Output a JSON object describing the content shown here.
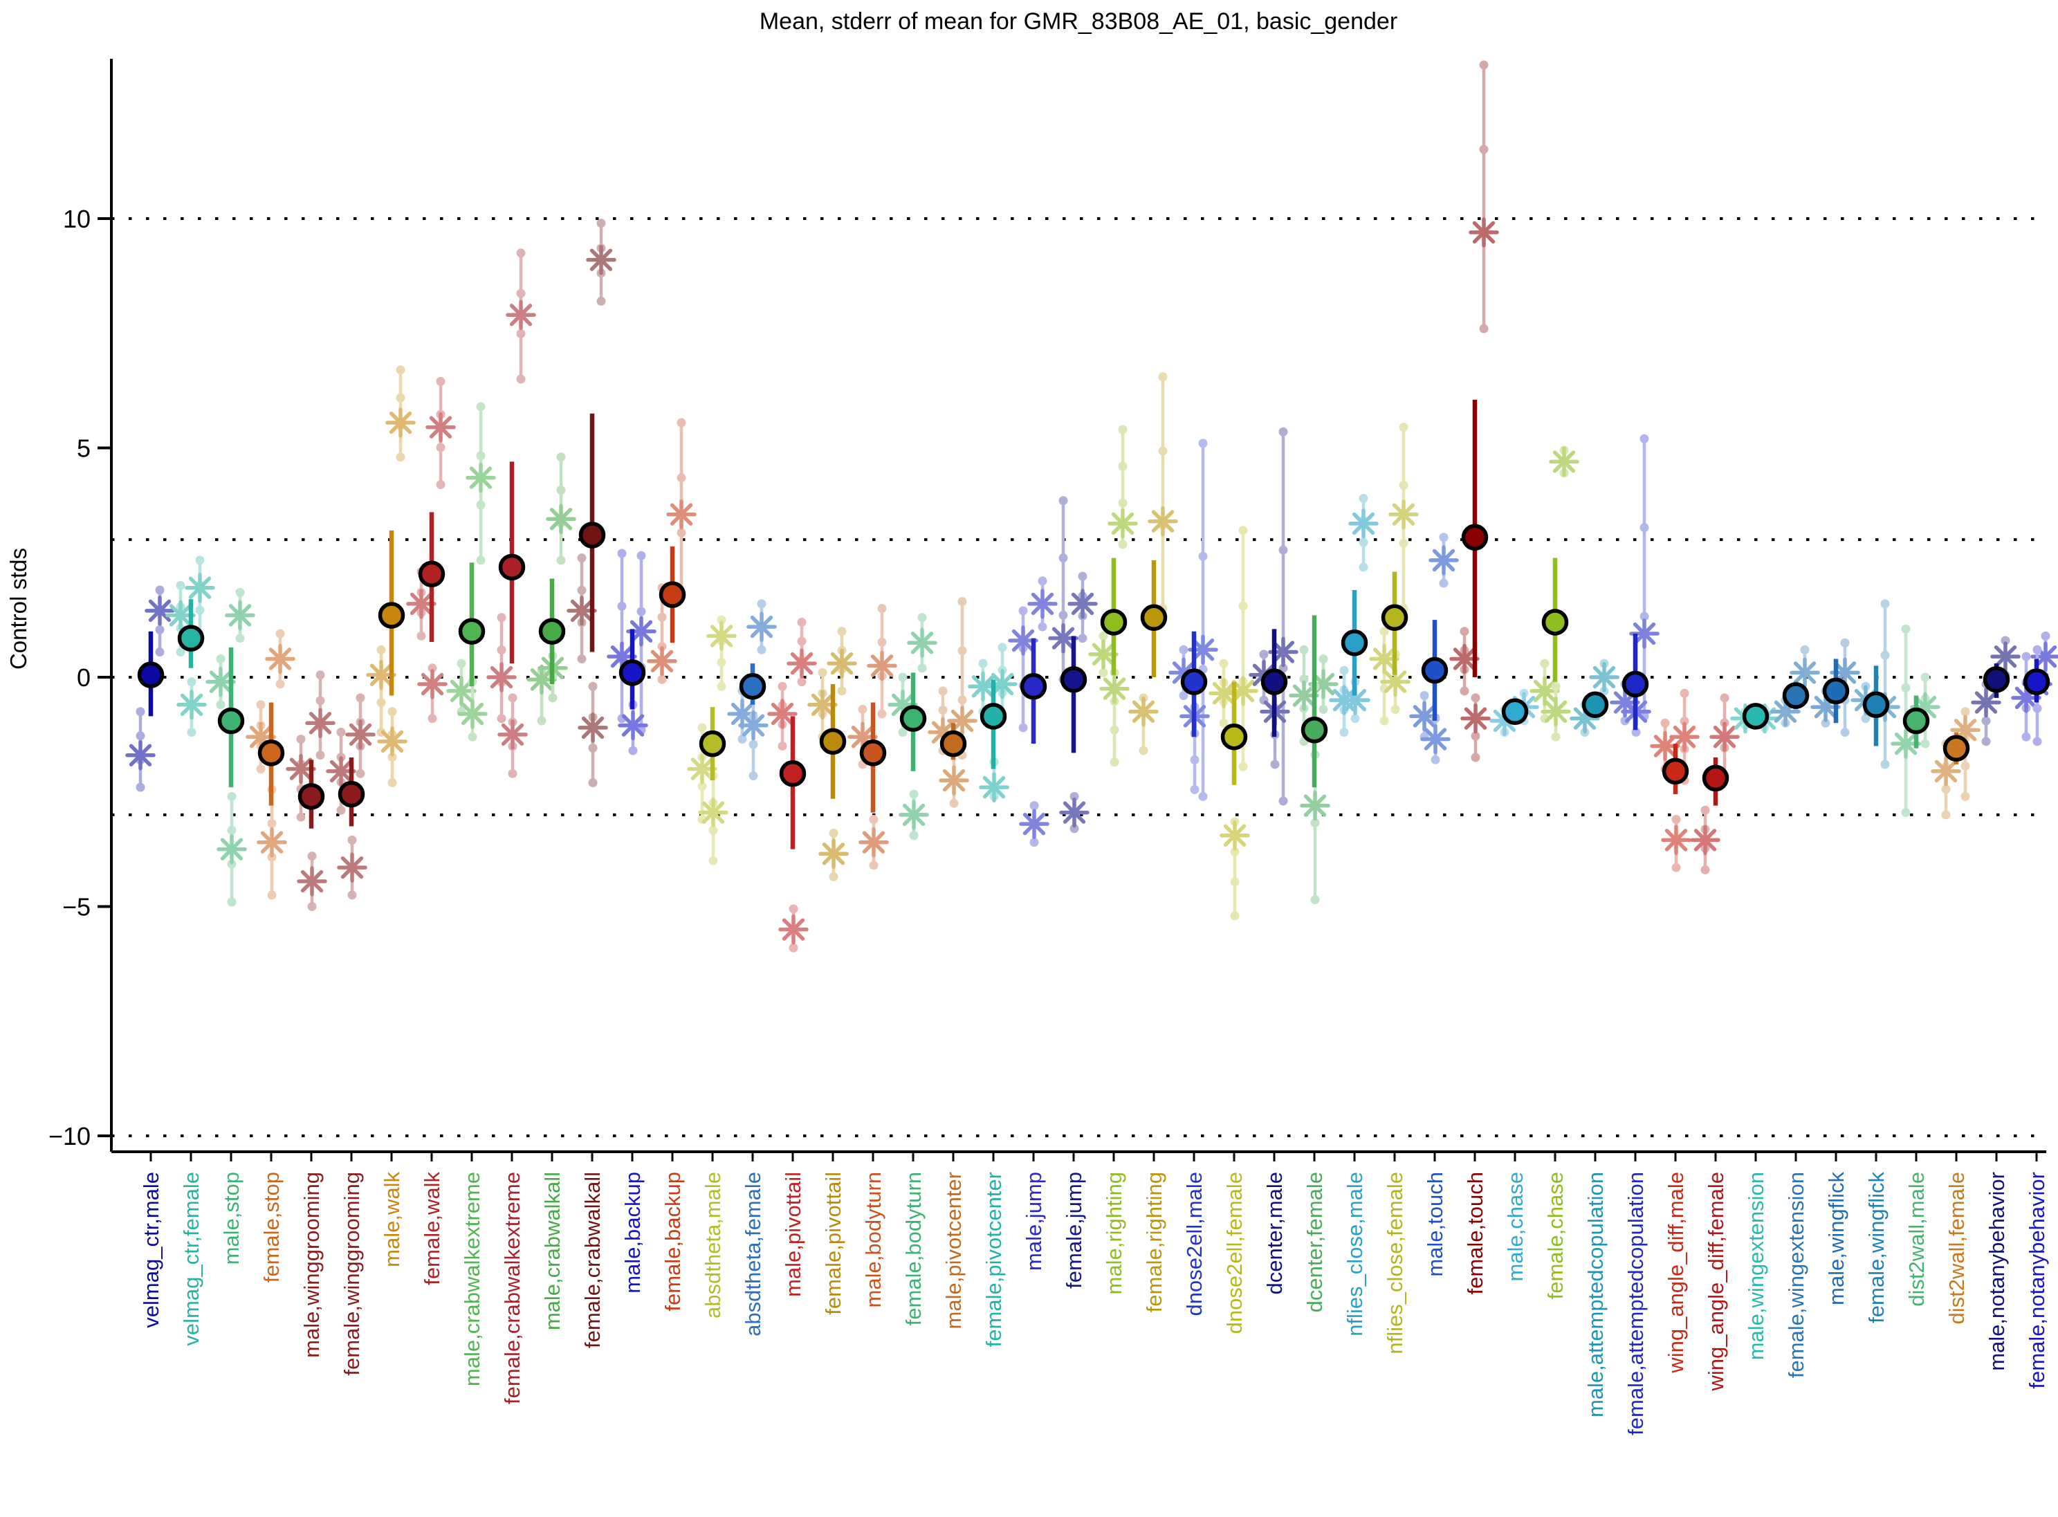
{
  "chart_data": {
    "type": "scatter",
    "title": "Mean, stderr of mean for GMR_83B08_AE_01, basic_gender",
    "ylabel": "Control stds",
    "ylim": [
      -10.35,
      13.5
    ],
    "grid": "dotted-horizontal",
    "gridlines": [
      10,
      3,
      0,
      -3,
      -10
    ],
    "yticks": [
      {
        "v": 10,
        "label": "10"
      },
      {
        "v": 5,
        "label": "5"
      },
      {
        "v": 0,
        "label": "0"
      },
      {
        "v": -5,
        "label": "−5"
      },
      {
        "v": -10,
        "label": "−10"
      }
    ],
    "marker_note": "filled circle = mean with stderr bar; light bars/dots and asterisks = control distributions",
    "series": [
      {
        "label": "velmag_ctr,male",
        "color": "#0a0aa0",
        "mean": 0.05,
        "lo": -0.85,
        "hi": 1.0,
        "ctrl": [
          [
            1.45,
            0.55,
            1.9
          ],
          [
            -1.7,
            -2.4,
            -0.75
          ]
        ]
      },
      {
        "label": "velmag_ctr,female",
        "color": "#26b3a4",
        "mean": 0.85,
        "lo": 0.2,
        "hi": 1.7,
        "ctrl": [
          [
            1.95,
            0.85,
            2.55
          ],
          [
            1.35,
            0.55,
            2.0
          ],
          [
            -0.6,
            -1.2,
            -0.1
          ]
        ]
      },
      {
        "label": "male,stop",
        "color": "#3cb371",
        "mean": -0.95,
        "lo": -2.4,
        "hi": 0.65,
        "ctrl": [
          [
            1.35,
            0.85,
            1.85
          ],
          [
            -0.1,
            -0.6,
            0.4
          ],
          [
            -3.75,
            -4.9,
            -2.6
          ]
        ]
      },
      {
        "label": "female,stop",
        "color": "#cd661d",
        "mean": -1.65,
        "lo": -2.8,
        "hi": -0.55,
        "ctrl": [
          [
            0.4,
            -0.15,
            0.95
          ],
          [
            -1.3,
            -2.0,
            -0.6
          ],
          [
            -3.6,
            -4.75,
            -2.45
          ]
        ]
      },
      {
        "label": "male,winggrooming",
        "color": "#8b1a1a",
        "mean": -2.6,
        "lo": -3.3,
        "hi": -1.8,
        "ctrl": [
          [
            -1.0,
            -1.7,
            0.05
          ],
          [
            -2.0,
            -3.05,
            -1.35
          ],
          [
            -4.45,
            -5.0,
            -3.9
          ]
        ]
      },
      {
        "label": "female,winggrooming",
        "color": "#8b1a1a",
        "mean": -2.55,
        "lo": -3.25,
        "hi": -1.75,
        "ctrl": [
          [
            -1.25,
            -2.1,
            -0.45
          ],
          [
            -2.05,
            -2.9,
            -1.2
          ],
          [
            -4.15,
            -4.75,
            -3.55
          ]
        ]
      },
      {
        "label": "male,walk",
        "color": "#c8860b",
        "mean": 1.35,
        "lo": -0.4,
        "hi": 3.2,
        "ctrl": [
          [
            5.55,
            4.8,
            6.7
          ],
          [
            0.05,
            -1.2,
            0.6
          ],
          [
            -1.4,
            -2.3,
            -0.75
          ]
        ]
      },
      {
        "label": "female,walk",
        "color": "#b22222",
        "mean": 2.25,
        "lo": 0.77,
        "hi": 3.6,
        "ctrl": [
          [
            5.45,
            4.2,
            6.45
          ],
          [
            1.6,
            0.9,
            2.3
          ],
          [
            -0.15,
            -0.9,
            0.2
          ]
        ]
      },
      {
        "label": "male,crabwalkextreme",
        "color": "#50b450",
        "mean": 1.0,
        "lo": -0.2,
        "hi": 2.5,
        "ctrl": [
          [
            4.35,
            2.55,
            5.9
          ],
          [
            -0.3,
            -0.75,
            0.3
          ],
          [
            -0.8,
            -1.3,
            -0.1
          ]
        ]
      },
      {
        "label": "female,crabwalkextreme",
        "color": "#aa2028",
        "mean": 2.4,
        "lo": 0.3,
        "hi": 4.7,
        "ctrl": [
          [
            7.9,
            6.5,
            9.25
          ],
          [
            0.0,
            -0.9,
            1.3
          ],
          [
            -1.25,
            -2.1,
            -0.45
          ]
        ]
      },
      {
        "label": "male,crabwalkall",
        "color": "#46ab46",
        "mean": 1.0,
        "lo": -0.15,
        "hi": 2.15,
        "ctrl": [
          [
            3.45,
            2.55,
            4.8
          ],
          [
            -0.05,
            -0.95,
            0.15
          ],
          [
            0.2,
            -0.45,
            0.9
          ]
        ]
      },
      {
        "label": "female,crabwalkall",
        "color": "#701414",
        "mean": 3.1,
        "lo": 0.55,
        "hi": 5.75,
        "ctrl": [
          [
            9.1,
            8.2,
            9.9
          ],
          [
            1.45,
            0.4,
            2.6
          ],
          [
            -1.1,
            -2.3,
            -0.2
          ]
        ]
      },
      {
        "label": "male,backup",
        "color": "#1414c8",
        "mean": 0.1,
        "lo": -0.7,
        "hi": 1.05,
        "ctrl": [
          [
            1.0,
            -1.15,
            2.65
          ],
          [
            0.45,
            -0.9,
            2.7
          ],
          [
            -1.05,
            -1.6,
            -0.6
          ]
        ]
      },
      {
        "label": "female,backup",
        "color": "#c83c14",
        "mean": 1.8,
        "lo": 0.75,
        "hi": 2.85,
        "ctrl": [
          [
            3.55,
            1.8,
            5.55
          ],
          [
            0.35,
            -0.05,
            1.95
          ]
        ]
      },
      {
        "label": "absdtheta,male",
        "color": "#b4bd28",
        "mean": -1.45,
        "lo": -2.25,
        "hi": -0.65,
        "ctrl": [
          [
            0.9,
            -0.2,
            1.25
          ],
          [
            -2.0,
            -3.1,
            -1.1
          ],
          [
            -2.95,
            -4.0,
            -2.15
          ]
        ]
      },
      {
        "label": "absdtheta,female",
        "color": "#2b6fc2",
        "mean": -0.2,
        "lo": -0.6,
        "hi": 0.3,
        "ctrl": [
          [
            1.1,
            0.6,
            1.6
          ],
          [
            -0.8,
            -1.35,
            -0.3
          ],
          [
            -1.05,
            -2.15,
            -0.25
          ]
        ]
      },
      {
        "label": "male,pivottail",
        "color": "#c22121",
        "mean": -2.1,
        "lo": -3.75,
        "hi": -0.85,
        "ctrl": [
          [
            0.3,
            -0.1,
            1.2
          ],
          [
            -0.8,
            -1.5,
            -0.2
          ],
          [
            -5.5,
            -5.9,
            -5.05
          ]
        ]
      },
      {
        "label": "female,pivottail",
        "color": "#bb8a0b",
        "mean": -1.4,
        "lo": -2.65,
        "hi": -0.15,
        "ctrl": [
          [
            0.3,
            -0.3,
            1.0
          ],
          [
            -0.6,
            -1.3,
            0.1
          ],
          [
            -3.85,
            -4.35,
            -3.4
          ]
        ]
      },
      {
        "label": "male,bodyturn",
        "color": "#c8551f",
        "mean": -1.65,
        "lo": -2.95,
        "hi": -0.55,
        "ctrl": [
          [
            0.25,
            -0.8,
            1.5
          ],
          [
            -1.3,
            -1.9,
            -0.7
          ],
          [
            -3.6,
            -4.1,
            -3.1
          ]
        ]
      },
      {
        "label": "female,bodyturn",
        "color": "#3cb371",
        "mean": -0.9,
        "lo": -2.05,
        "hi": 0.1,
        "ctrl": [
          [
            0.75,
            0.2,
            1.3
          ],
          [
            -0.6,
            -1.2,
            0.0
          ],
          [
            -3.0,
            -3.45,
            -2.55
          ]
        ]
      },
      {
        "label": "male,pivotcenter",
        "color": "#c26a1d",
        "mean": -1.45,
        "lo": -1.8,
        "hi": -1.0,
        "ctrl": [
          [
            -0.95,
            -1.7,
            1.65
          ],
          [
            -1.2,
            -1.6,
            -0.3
          ],
          [
            -2.25,
            -2.75,
            -1.65
          ]
        ]
      },
      {
        "label": "female,pivotcenter",
        "color": "#20b2aa",
        "mean": -0.85,
        "lo": -2.0,
        "hi": -0.05,
        "ctrl": [
          [
            -0.15,
            -0.9,
            0.65
          ],
          [
            -0.2,
            -0.75,
            0.3
          ],
          [
            -2.4,
            -2.6,
            -1.85
          ]
        ]
      },
      {
        "label": "male,jump",
        "color": "#2828c8",
        "mean": -0.2,
        "lo": -1.45,
        "hi": 0.85,
        "ctrl": [
          [
            1.6,
            1.1,
            2.1
          ],
          [
            0.8,
            -1.1,
            1.45
          ],
          [
            -3.2,
            -3.6,
            -2.8
          ]
        ]
      },
      {
        "label": "female,jump",
        "color": "#14148c",
        "mean": -0.05,
        "lo": -1.65,
        "hi": 0.9,
        "ctrl": [
          [
            1.6,
            0.85,
            2.2
          ],
          [
            0.85,
            -0.05,
            3.85
          ],
          [
            -2.95,
            -3.3,
            -2.6
          ]
        ]
      },
      {
        "label": "male,righting",
        "color": "#8fbc1f",
        "mean": 1.2,
        "lo": 0.05,
        "hi": 2.6,
        "ctrl": [
          [
            3.35,
            2.9,
            5.4
          ],
          [
            0.5,
            0.1,
            0.9
          ],
          [
            -0.25,
            -1.85,
            0.1
          ]
        ]
      },
      {
        "label": "female,righting",
        "color": "#bb960b",
        "mean": 1.3,
        "lo": 0.0,
        "hi": 2.55,
        "ctrl": [
          [
            3.4,
            1.5,
            6.55
          ],
          [
            -0.75,
            -1.6,
            -0.45
          ]
        ]
      },
      {
        "label": "dnose2ell,male",
        "color": "#2233cc",
        "mean": -0.1,
        "lo": -1.3,
        "hi": 1.0,
        "ctrl": [
          [
            0.6,
            -2.6,
            5.1
          ],
          [
            0.1,
            -0.4,
            0.6
          ],
          [
            -0.85,
            -2.45,
            -0.65
          ]
        ]
      },
      {
        "label": "dnose2ell,female",
        "color": "#b8b818",
        "mean": -1.3,
        "lo": -2.35,
        "hi": -0.1,
        "ctrl": [
          [
            -0.3,
            -1.95,
            3.2
          ],
          [
            -0.35,
            -1.0,
            0.3
          ],
          [
            -3.45,
            -5.2,
            -3.15
          ]
        ]
      },
      {
        "label": "dcenter,male",
        "color": "#101080",
        "mean": -0.1,
        "lo": -1.3,
        "hi": 1.05,
        "ctrl": [
          [
            0.55,
            -2.7,
            5.35
          ],
          [
            0.05,
            -0.5,
            0.5
          ],
          [
            -0.75,
            -1.9,
            -0.1
          ]
        ]
      },
      {
        "label": "dcenter,female",
        "color": "#46ab5a",
        "mean": -1.15,
        "lo": -2.4,
        "hi": 1.35,
        "ctrl": [
          [
            -0.15,
            -0.7,
            0.4
          ],
          [
            -0.4,
            -1.4,
            0.6
          ],
          [
            -2.8,
            -4.85,
            -0.2
          ]
        ]
      },
      {
        "label": "nflies_close,male",
        "color": "#28a0c8",
        "mean": 0.75,
        "lo": -0.4,
        "hi": 1.9,
        "ctrl": [
          [
            3.35,
            2.4,
            3.9
          ],
          [
            -0.5,
            -1.2,
            0.15
          ],
          [
            -0.5,
            -0.9,
            -0.1
          ]
        ]
      },
      {
        "label": "nflies_close,female",
        "color": "#b4b41e",
        "mean": 1.3,
        "lo": 0.05,
        "hi": 2.3,
        "ctrl": [
          [
            3.55,
            1.5,
            5.45
          ],
          [
            0.4,
            -0.95,
            1.0
          ],
          [
            -0.1,
            -0.7,
            0.5
          ]
        ]
      },
      {
        "label": "male,touch",
        "color": "#1e50c8",
        "mean": 0.15,
        "lo": -0.95,
        "hi": 1.25,
        "ctrl": [
          [
            2.55,
            2.05,
            3.05
          ],
          [
            -0.85,
            -1.3,
            -0.4
          ],
          [
            -1.35,
            -1.8,
            -0.9
          ]
        ]
      },
      {
        "label": "female,touch",
        "color": "#8b0000",
        "mean": 3.05,
        "lo": 0.0,
        "hi": 6.05,
        "ctrl": [
          [
            9.7,
            7.6,
            13.35
          ],
          [
            0.4,
            -0.3,
            1.0
          ],
          [
            -0.9,
            -1.75,
            -0.45
          ]
        ]
      },
      {
        "label": "male,chase",
        "color": "#30a8d2",
        "mean": -0.75,
        "lo": -0.95,
        "hi": -0.55,
        "ctrl": [
          [
            -0.65,
            -0.95,
            -0.35
          ],
          [
            -0.95,
            -1.2,
            -0.7
          ]
        ]
      },
      {
        "label": "female,chase",
        "color": "#8fbc1f",
        "mean": 1.2,
        "lo": -0.1,
        "hi": 2.6,
        "ctrl": [
          [
            4.7,
            4.45,
            4.95
          ],
          [
            -0.3,
            -0.9,
            0.3
          ],
          [
            -0.75,
            -1.3,
            -0.2
          ]
        ]
      },
      {
        "label": "male,attemptedcopulation",
        "color": "#1a96b4",
        "mean": -0.6,
        "lo": -0.85,
        "hi": -0.35,
        "ctrl": [
          [
            0.0,
            -0.3,
            0.3
          ],
          [
            -0.9,
            -1.2,
            -0.6
          ]
        ]
      },
      {
        "label": "female,attemptedcopulation",
        "color": "#1e28c8",
        "mean": -0.15,
        "lo": -1.15,
        "hi": 0.95,
        "ctrl": [
          [
            0.95,
            -0.85,
            5.2
          ],
          [
            -0.55,
            -0.95,
            -0.15
          ],
          [
            -0.75,
            -1.2,
            -0.3
          ]
        ]
      },
      {
        "label": "wing_angle_diff,male",
        "color": "#c82814",
        "mean": -2.05,
        "lo": -2.55,
        "hi": -1.45,
        "ctrl": [
          [
            -1.3,
            -2.25,
            -0.35
          ],
          [
            -1.5,
            -2.0,
            -1.0
          ],
          [
            -3.55,
            -4.15,
            -3.1
          ]
        ]
      },
      {
        "label": "wing_angle_diff,female",
        "color": "#b41414",
        "mean": -2.2,
        "lo": -2.8,
        "hi": -1.75,
        "ctrl": [
          [
            -1.3,
            -2.15,
            -0.45
          ],
          [
            -3.55,
            -4.2,
            -2.9
          ]
        ]
      },
      {
        "label": "male,wingextension",
        "color": "#28b8b0",
        "mean": -0.85,
        "lo": -1.0,
        "hi": -0.7,
        "ctrl": [
          [
            -0.9,
            -1.1,
            -0.7
          ],
          [
            -0.9,
            -1.05,
            -0.75
          ]
        ]
      },
      {
        "label": "female,wingextension",
        "color": "#2874b4",
        "mean": -0.4,
        "lo": -0.7,
        "hi": -0.1,
        "ctrl": [
          [
            0.1,
            -0.4,
            0.6
          ],
          [
            -0.75,
            -1.0,
            -0.5
          ]
        ]
      },
      {
        "label": "male,wingflick",
        "color": "#1f6cb4",
        "mean": -0.3,
        "lo": -1.0,
        "hi": 0.4,
        "ctrl": [
          [
            0.1,
            -1.2,
            0.75
          ],
          [
            -0.65,
            -1.0,
            -0.3
          ]
        ]
      },
      {
        "label": "female,wingflick",
        "color": "#1e82b4",
        "mean": -0.6,
        "lo": -1.5,
        "hi": 0.25,
        "ctrl": [
          [
            -0.65,
            -1.9,
            1.6
          ],
          [
            -0.5,
            -0.9,
            -0.2
          ]
        ]
      },
      {
        "label": "dist2wall,male",
        "color": "#46b46e",
        "mean": -0.95,
        "lo": -1.55,
        "hi": -0.4,
        "ctrl": [
          [
            -0.65,
            -1.45,
            0.0
          ],
          [
            -1.45,
            -2.95,
            1.05
          ]
        ]
      },
      {
        "label": "dist2wall,female",
        "color": "#c87820",
        "mean": -1.55,
        "lo": -1.9,
        "hi": -1.2,
        "ctrl": [
          [
            -1.15,
            -2.6,
            -0.75
          ],
          [
            -2.05,
            -3.0,
            -1.45
          ]
        ]
      },
      {
        "label": "male,notanybehavior",
        "color": "#10107a",
        "mean": -0.05,
        "lo": -0.45,
        "hi": 0.3,
        "ctrl": [
          [
            0.45,
            0.05,
            0.8
          ],
          [
            -0.55,
            -1.4,
            -0.15
          ]
        ]
      },
      {
        "label": "female,notanybehavior",
        "color": "#1616c8",
        "mean": -0.1,
        "lo": -0.55,
        "hi": 0.4,
        "ctrl": [
          [
            0.45,
            -0.1,
            0.9
          ],
          [
            -0.45,
            -1.3,
            0.45
          ],
          [
            -0.15,
            -1.4,
            0.6
          ]
        ]
      }
    ]
  }
}
